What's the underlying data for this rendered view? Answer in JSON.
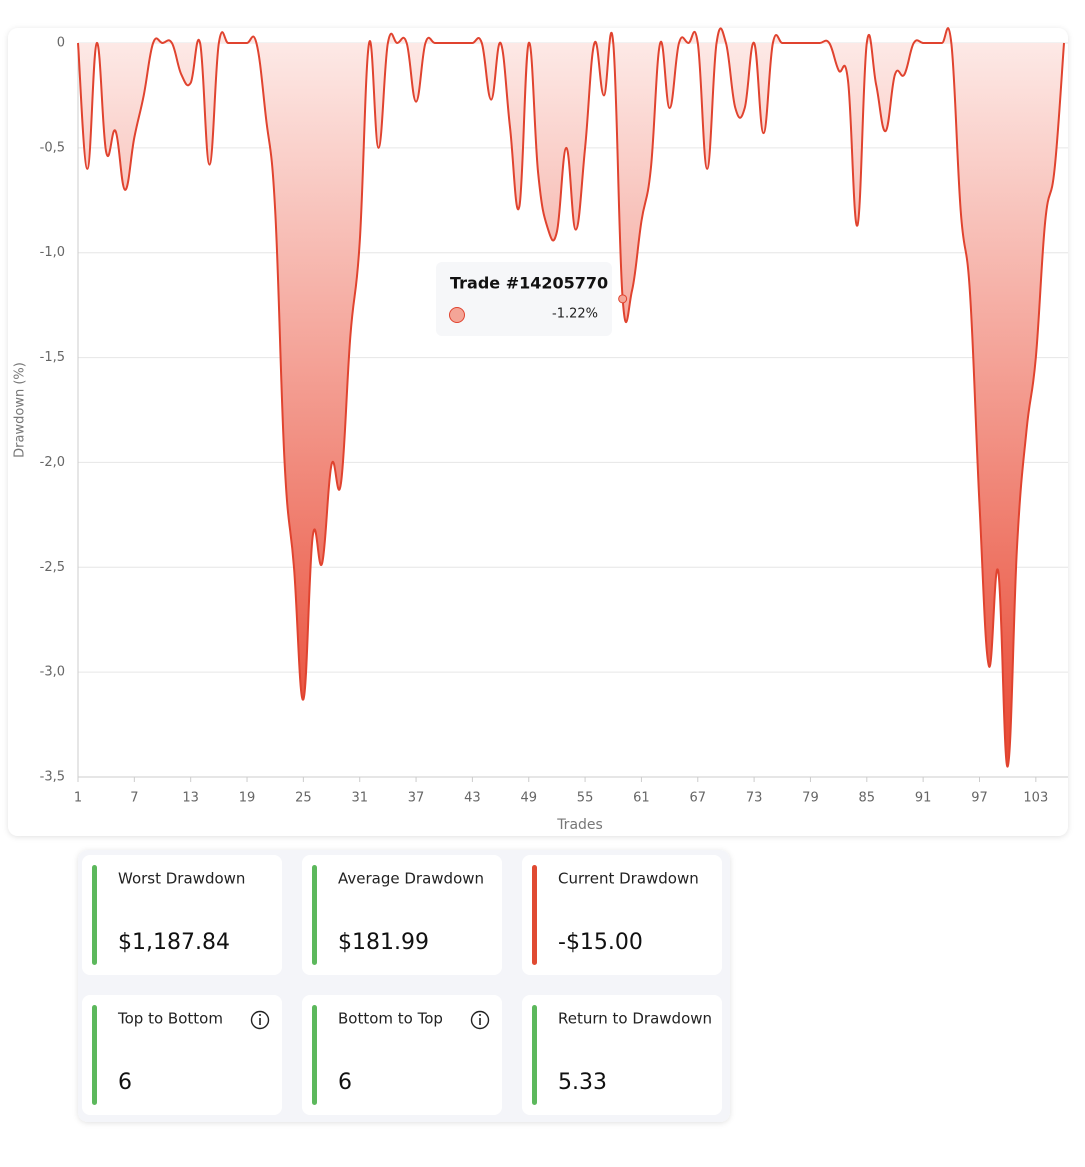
{
  "chart_data": {
    "type": "area",
    "x": [
      1,
      2,
      3,
      4,
      5,
      6,
      7,
      8,
      9,
      10,
      11,
      12,
      13,
      14,
      15,
      16,
      17,
      18,
      19,
      20,
      21,
      22,
      23,
      24,
      25,
      26,
      27,
      28,
      29,
      30,
      31,
      32,
      33,
      34,
      35,
      36,
      37,
      38,
      39,
      40,
      41,
      42,
      43,
      44,
      45,
      46,
      47,
      48,
      49,
      50,
      51,
      52,
      53,
      54,
      55,
      56,
      57,
      58,
      59,
      60,
      61,
      62,
      63,
      64,
      65,
      66,
      67,
      68,
      69,
      70,
      71,
      72,
      73,
      74,
      75,
      76,
      77,
      78,
      79,
      80,
      81,
      82,
      83,
      84,
      85,
      86,
      87,
      88,
      89,
      90,
      91,
      92,
      93,
      94,
      95,
      96,
      97,
      98,
      99,
      100,
      101,
      102,
      103,
      104,
      105,
      106
    ],
    "values": [
      0,
      -0.6,
      0,
      -0.52,
      -0.42,
      -0.7,
      -0.45,
      -0.25,
      0,
      0,
      0,
      -0.15,
      -0.19,
      0,
      -0.58,
      0,
      0,
      0,
      0,
      0,
      -0.35,
      -0.8,
      -2.0,
      -2.5,
      -3.13,
      -2.35,
      -2.48,
      -2.01,
      -2.1,
      -1.4,
      -0.95,
      0,
      -0.5,
      0,
      0,
      0,
      -0.28,
      0,
      0,
      0,
      0,
      0,
      0,
      0,
      -0.27,
      0,
      -0.4,
      -0.78,
      0,
      -0.62,
      -0.88,
      -0.9,
      -0.5,
      -0.89,
      -0.5,
      0,
      -0.25,
      0,
      -1.22,
      -1.18,
      -0.85,
      -0.6,
      0,
      -0.31,
      0,
      0,
      0,
      -0.6,
      0,
      0,
      -0.31,
      -0.31,
      0,
      -0.43,
      0,
      0,
      0,
      0,
      0,
      0,
      0,
      -0.13,
      -0.18,
      -0.87,
      0,
      -0.2,
      -0.42,
      -0.15,
      -0.15,
      0,
      0,
      0,
      0,
      0,
      -0.8,
      -1.2,
      -2.2,
      -2.97,
      -2.52,
      -3.45,
      -2.4,
      -1.85,
      -1.5,
      -0.85,
      -0.6,
      0
    ],
    "color": "#e0432f",
    "xlim": [
      1,
      106
    ],
    "xticks": [
      1,
      7,
      13,
      19,
      25,
      31,
      37,
      43,
      49,
      55,
      61,
      67,
      73,
      79,
      85,
      91,
      97,
      103
    ],
    "ylim": [
      -3.5,
      0
    ],
    "yticks": [
      0,
      {
        "value": -0.5,
        "label": "-0,5"
      },
      {
        "value": -1,
        "label": "-1,0"
      },
      {
        "value": -1.5,
        "label": "-1,5"
      },
      {
        "value": -2,
        "label": "-2,0"
      },
      {
        "value": -2.5,
        "label": "-2,5"
      },
      {
        "value": -3,
        "label": "-3,0"
      },
      {
        "value": -3.5,
        "label": "-3,5"
      }
    ],
    "grid": true,
    "x_label": "Trades",
    "y_label": "Drawdown (%)",
    "tooltip": {
      "title": "Trade #14205770",
      "text": "-1.22%"
    }
  },
  "stats": [
    {
      "label": "Worst Drawdown",
      "value": "$1,187.84",
      "color": "#5cb85c"
    },
    {
      "label": "Average Drawdown",
      "value": "$181.99",
      "color": "#5cb85c"
    },
    {
      "label": "Current Drawdown",
      "value": "-$15.00",
      "color": "#e04a32"
    },
    {
      "label": "Top to Bottom",
      "value": "6",
      "color": "#5cb85c",
      "info": true
    },
    {
      "label": "Bottom to Top",
      "value": "6",
      "color": "#5cb85c",
      "info": true
    },
    {
      "label": "Return to Drawdown",
      "value": "5.33",
      "color": "#5cb85c"
    }
  ]
}
